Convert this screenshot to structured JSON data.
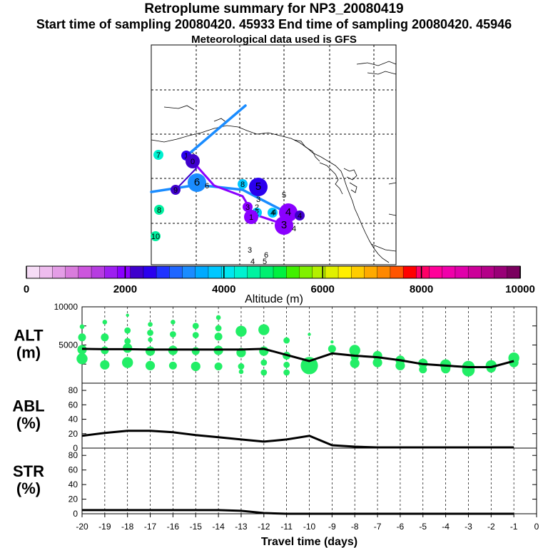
{
  "header": {
    "title": "Retroplume summary for NP3_20080419",
    "sampling_line": "Start time of sampling 20080420. 45933     End time of sampling 20080420. 45946",
    "met_line": "Meteorological data used is GFS"
  },
  "colorbar": {
    "label": "Altitude (m)",
    "ticks": [
      0,
      2000,
      4000,
      6000,
      8000,
      10000
    ],
    "colors": [
      "#f6dcf6",
      "#eebcee",
      "#e49de6",
      "#d97cdc",
      "#cc55dd",
      "#b63ce0",
      "#9d1ff0",
      "#8a00ff",
      "#3f00cc",
      "#2a00ee",
      "#1f33ff",
      "#1f66ff",
      "#1a8cff",
      "#00aaff",
      "#00c8ff",
      "#00e6f0",
      "#00f2d0",
      "#00f2a0",
      "#00f070",
      "#00f040",
      "#40f000",
      "#80f000",
      "#b4f000",
      "#e0f000",
      "#ffee00",
      "#ffcc00",
      "#ffaa00",
      "#ff8800",
      "#ff5500",
      "#ff0000",
      "#ff0066",
      "#ff0099",
      "#f000aa",
      "#e000aa",
      "#cc0099",
      "#b40088",
      "#990077",
      "#7a005e"
    ]
  },
  "map": {
    "markers": [
      {
        "label": "7",
        "color": "#00f0d0",
        "size": "s"
      },
      {
        "label": "1",
        "color": "#2a00ee",
        "size": "s"
      },
      {
        "label": "0",
        "color": "#3f00cc",
        "size": "m"
      },
      {
        "label": "6",
        "color": "#1a8cff",
        "size": "l"
      },
      {
        "label": "9",
        "color": "#3f00cc",
        "size": "s"
      },
      {
        "label": "8",
        "color": "#00c8ff",
        "size": "s"
      },
      {
        "label": "5",
        "color": "#2a00ee",
        "size": "l"
      },
      {
        "label": "3",
        "color": "#8a00ff",
        "size": "s"
      },
      {
        "label": "2",
        "color": "#00c8ff",
        "size": "s"
      },
      {
        "label": "1",
        "color": "#8a00ff",
        "size": "m"
      },
      {
        "label": "4",
        "color": "#00c8ff",
        "size": "s"
      },
      {
        "label": "4",
        "color": "#8a00ff",
        "size": "l"
      },
      {
        "label": "3",
        "color": "#8a00ff",
        "size": "l"
      },
      {
        "label": "4",
        "color": "#3f00cc",
        "size": "s"
      },
      {
        "label": "8",
        "color": "#00f0a0",
        "size": "s"
      },
      {
        "label": "10",
        "color": "#00f0a0",
        "size": "s"
      }
    ],
    "text_labels": [
      "5",
      "6",
      "3",
      "2",
      "4",
      "3",
      "6",
      "4",
      "5",
      "4"
    ]
  },
  "chart_data": [
    {
      "type": "scatter+line",
      "panel": "ALT",
      "ylabel": "ALT\n(m)",
      "ylim": [
        0,
        10000
      ],
      "yticks": [
        2500,
        5000,
        7500,
        10000
      ],
      "yticklabels": [
        "",
        "5000",
        "",
        "10000"
      ],
      "xlim": [
        -20,
        0
      ],
      "line": {
        "x": [
          -20,
          -19,
          -18,
          -17,
          -16,
          -15,
          -14,
          -13,
          -12,
          -11,
          -10,
          -9,
          -8,
          -7,
          -6,
          -5,
          -4,
          -3,
          -2,
          -1
        ],
        "y": [
          4500,
          4450,
          4450,
          4400,
          4400,
          4400,
          4400,
          4400,
          4500,
          3700,
          2900,
          3900,
          3600,
          3400,
          3000,
          2500,
          2300,
          2100,
          2100,
          2900
        ]
      },
      "points": [
        {
          "x": -20,
          "y": 7400,
          "r": 1.5
        },
        {
          "x": -20,
          "y": 6000,
          "r": 2.5
        },
        {
          "x": -20,
          "y": 4400,
          "r": 3
        },
        {
          "x": -20,
          "y": 3200,
          "r": 3.5
        },
        {
          "x": -19,
          "y": 8000,
          "r": 1.5
        },
        {
          "x": -19,
          "y": 6000,
          "r": 2.5
        },
        {
          "x": -19,
          "y": 4300,
          "r": 2.5
        },
        {
          "x": -19,
          "y": 2400,
          "r": 3
        },
        {
          "x": -18,
          "y": 8900,
          "r": 1
        },
        {
          "x": -18,
          "y": 6900,
          "r": 2
        },
        {
          "x": -18,
          "y": 5500,
          "r": 2
        },
        {
          "x": -18,
          "y": 4600,
          "r": 3
        },
        {
          "x": -18,
          "y": 2700,
          "r": 3.5
        },
        {
          "x": -17,
          "y": 7700,
          "r": 1.5
        },
        {
          "x": -17,
          "y": 6600,
          "r": 2
        },
        {
          "x": -17,
          "y": 5700,
          "r": 1.5
        },
        {
          "x": -17,
          "y": 4200,
          "r": 3
        },
        {
          "x": -17,
          "y": 2300,
          "r": 3
        },
        {
          "x": -16,
          "y": 8000,
          "r": 1.5
        },
        {
          "x": -16,
          "y": 6400,
          "r": 2
        },
        {
          "x": -16,
          "y": 4300,
          "r": 3
        },
        {
          "x": -16,
          "y": 2300,
          "r": 2.5
        },
        {
          "x": -15,
          "y": 7500,
          "r": 2
        },
        {
          "x": -15,
          "y": 6300,
          "r": 2
        },
        {
          "x": -15,
          "y": 4200,
          "r": 2.5
        },
        {
          "x": -15,
          "y": 2200,
          "r": 3
        },
        {
          "x": -14,
          "y": 8600,
          "r": 1.5
        },
        {
          "x": -14,
          "y": 7200,
          "r": 2
        },
        {
          "x": -14,
          "y": 6100,
          "r": 2.5
        },
        {
          "x": -14,
          "y": 4300,
          "r": 3
        },
        {
          "x": -14,
          "y": 2200,
          "r": 2.5
        },
        {
          "x": -13,
          "y": 6800,
          "r": 3.5
        },
        {
          "x": -13,
          "y": 4000,
          "r": 3
        },
        {
          "x": -13,
          "y": 2200,
          "r": 2
        },
        {
          "x": -13,
          "y": 1500,
          "r": 1.5
        },
        {
          "x": -12,
          "y": 7000,
          "r": 3.5
        },
        {
          "x": -12,
          "y": 4200,
          "r": 3
        },
        {
          "x": -12,
          "y": 2700,
          "r": 2
        },
        {
          "x": -12,
          "y": 1400,
          "r": 2
        },
        {
          "x": -11,
          "y": 5600,
          "r": 2
        },
        {
          "x": -11,
          "y": 3600,
          "r": 2.5
        },
        {
          "x": -11,
          "y": 2400,
          "r": 2
        },
        {
          "x": -11,
          "y": 1400,
          "r": 2
        },
        {
          "x": -10,
          "y": 6400,
          "r": 1
        },
        {
          "x": -10,
          "y": 2300,
          "r": 5.5
        },
        {
          "x": -9,
          "y": 5400,
          "r": 1
        },
        {
          "x": -9,
          "y": 4500,
          "r": 2.5
        },
        {
          "x": -8,
          "y": 4300,
          "r": 3.5
        },
        {
          "x": -8,
          "y": 3400,
          "r": 2.5
        },
        {
          "x": -8,
          "y": 2600,
          "r": 3
        },
        {
          "x": -7,
          "y": 3600,
          "r": 3
        },
        {
          "x": -7,
          "y": 2700,
          "r": 3
        },
        {
          "x": -6,
          "y": 3000,
          "r": 3
        },
        {
          "x": -6,
          "y": 2300,
          "r": 3
        },
        {
          "x": -5,
          "y": 2600,
          "r": 3
        },
        {
          "x": -5,
          "y": 1800,
          "r": 2.5
        },
        {
          "x": -4,
          "y": 2400,
          "r": 3.5
        },
        {
          "x": -4,
          "y": 1900,
          "r": 3
        },
        {
          "x": -3,
          "y": 2100,
          "r": 4
        },
        {
          "x": -3,
          "y": 1700,
          "r": 4
        },
        {
          "x": -2,
          "y": 2300,
          "r": 3.5
        },
        {
          "x": -2,
          "y": 2000,
          "r": 3
        },
        {
          "x": -1,
          "y": 3300,
          "r": 3.5
        },
        {
          "x": -1,
          "y": 2700,
          "r": 3
        }
      ],
      "point_color": "#22ee66"
    },
    {
      "type": "line",
      "panel": "ABL",
      "ylabel": "ABL\n(%)",
      "ylim": [
        0,
        90
      ],
      "yticks": [
        0,
        20,
        40,
        60,
        80
      ],
      "xlim": [
        -20,
        0
      ],
      "x": [
        -20,
        -19,
        -18,
        -17,
        -16,
        -15,
        -14,
        -13,
        -12,
        -11,
        -10,
        -9,
        -8,
        -7,
        -6,
        -5,
        -4,
        -3,
        -2,
        -1
      ],
      "y": [
        17,
        21,
        24,
        24,
        22,
        18,
        15,
        12,
        9,
        12,
        17,
        4,
        2,
        1,
        1,
        1,
        1,
        1,
        1,
        1
      ]
    },
    {
      "type": "line",
      "panel": "STR",
      "ylabel": "STR\n(%)",
      "ylim": [
        0,
        90
      ],
      "yticks": [
        0,
        20,
        40,
        60,
        80
      ],
      "xlim": [
        -20,
        0
      ],
      "x": [
        -20,
        -19,
        -18,
        -17,
        -16,
        -15,
        -14,
        -13,
        -12,
        -11,
        -10,
        -9,
        -8,
        -7,
        -6,
        -5,
        -4,
        -3,
        -2,
        -1
      ],
      "y": [
        5,
        5,
        5,
        5,
        5,
        5,
        5,
        4,
        1,
        0,
        0,
        0,
        0,
        0,
        0,
        0,
        0,
        0,
        0,
        0
      ],
      "xlabel": "Travel time (days)",
      "xticks": [
        -20,
        -19,
        -18,
        -17,
        -16,
        -15,
        -14,
        -13,
        -12,
        -11,
        -10,
        -9,
        -8,
        -7,
        -6,
        -5,
        -4,
        -3,
        -2,
        -1,
        0
      ]
    }
  ]
}
